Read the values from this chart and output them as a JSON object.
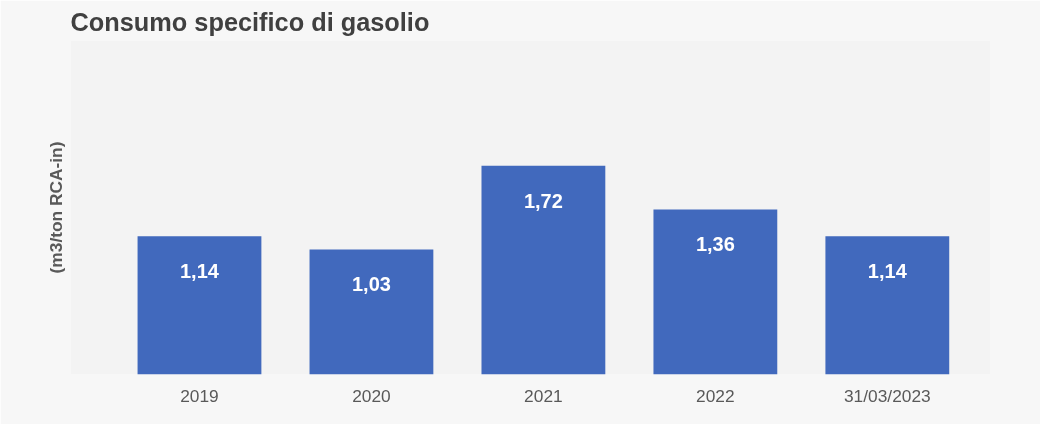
{
  "chart_data": {
    "type": "bar",
    "title": "Consumo specifico di gasolio",
    "ylabel": "(m3/ton RCA-in)",
    "categories": [
      "2019",
      "2020",
      "2021",
      "2022",
      "31/03/2023"
    ],
    "values": [
      1.14,
      1.03,
      1.72,
      1.36,
      1.14
    ],
    "value_labels": [
      "1,14",
      "1,03",
      "1,72",
      "1,36",
      "1,14"
    ],
    "color": "#4169bd",
    "grid": false,
    "tick_labels": "x"
  }
}
